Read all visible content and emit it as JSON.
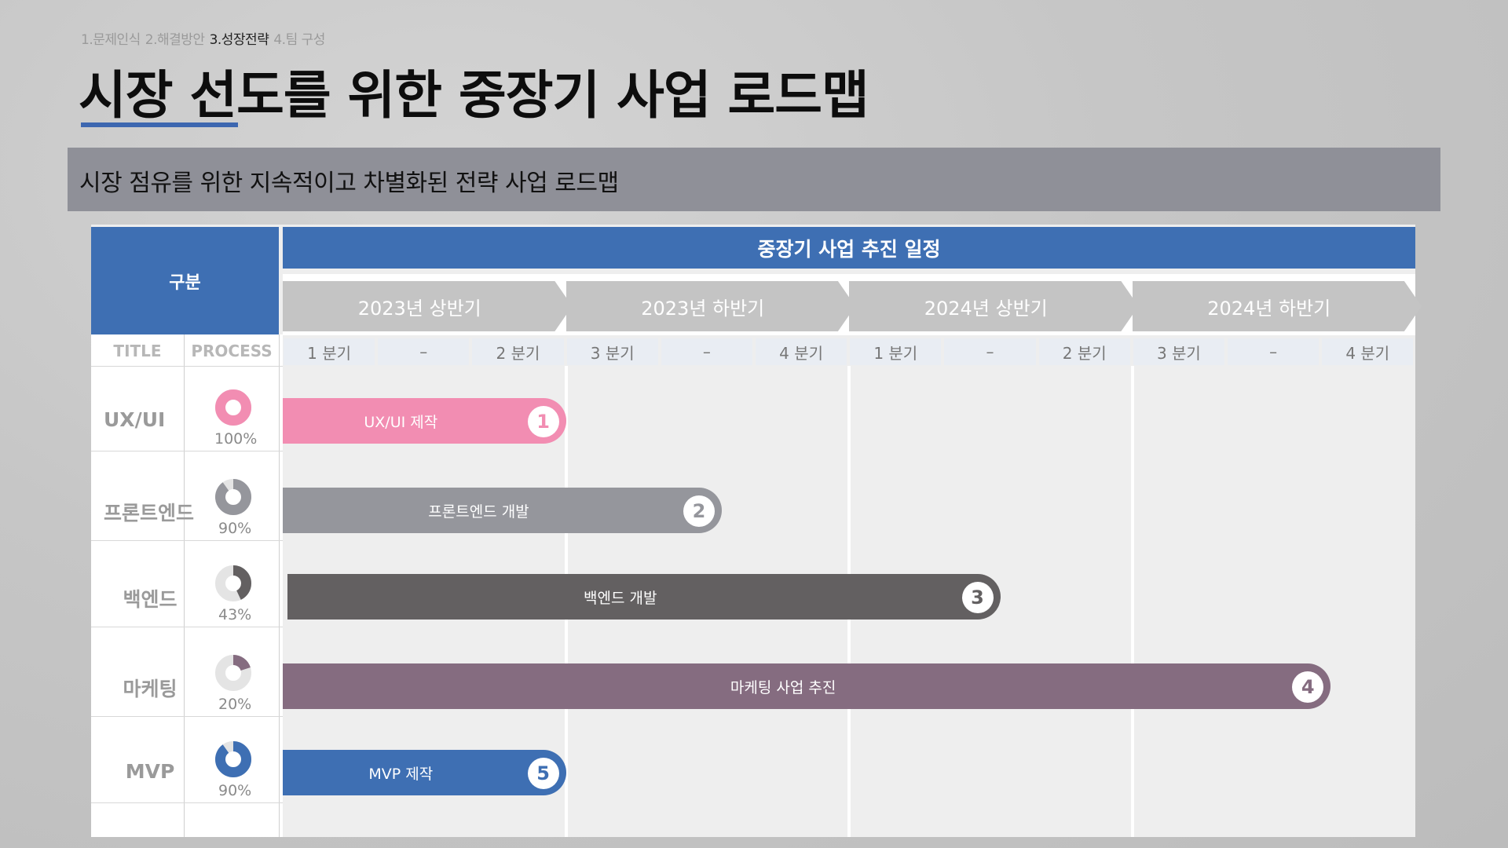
{
  "breadcrumb": [
    {
      "label": "1.문제인식",
      "active": false
    },
    {
      "label": "2.해결방안",
      "active": false
    },
    {
      "label": "3.성장전략",
      "active": true
    },
    {
      "label": "4.팀 구성",
      "active": false
    }
  ],
  "title": "시장 선도를 위한 중장기 사업 로드맵",
  "subtitle": "시장 점유를 위한 지속적이고 차별화된 전략 사업 로드맵",
  "table": {
    "category_header": "구분",
    "schedule_header": "중장기 사업 추진 일정",
    "col_title": "TITLE",
    "col_process": "PROCESS",
    "halves": [
      "2023년 상반기",
      "2023년 하반기",
      "2024년 상반기",
      "2024년 하반기"
    ],
    "quarters": [
      "1 분기",
      "–",
      "2 분기",
      "3 분기",
      "–",
      "4 분기",
      "1 분기",
      "–",
      "2 분기",
      "3 분기",
      "–",
      "4 분기"
    ]
  },
  "rows": [
    {
      "title": "UX/UI",
      "percent": 100,
      "percent_label": "100%",
      "bar_label": "UX/UI 제작",
      "number": "1",
      "color": "#f28db2",
      "start_col": 0,
      "end_col": 3
    },
    {
      "title": "프론트엔드",
      "percent": 90,
      "percent_label": "90%",
      "bar_label": "프론트엔드 개발",
      "number": "2",
      "color": "#95969c",
      "start_col": 0,
      "end_col": 4.65
    },
    {
      "title": "백엔드",
      "percent": 43,
      "percent_label": "43%",
      "bar_label": "백엔드 개발",
      "number": "3",
      "color": "#636061",
      "start_col": 0.05,
      "end_col": 7.6
    },
    {
      "title": "마케팅",
      "percent": 20,
      "percent_label": "20%",
      "bar_label": "마케팅 사업 추진",
      "number": "4",
      "color": "#856c80",
      "start_col": 0,
      "end_col": 11.1
    },
    {
      "title": "MVP",
      "percent": 90,
      "percent_label": "90%",
      "bar_label": "MVP 제작",
      "number": "5",
      "color": "#3e6fb3",
      "start_col": 0,
      "end_col": 3
    }
  ],
  "colors": {
    "accent": "#3e6fb3",
    "subtitle_bar": "#8f9098",
    "chevron": "#c4c4c4"
  }
}
